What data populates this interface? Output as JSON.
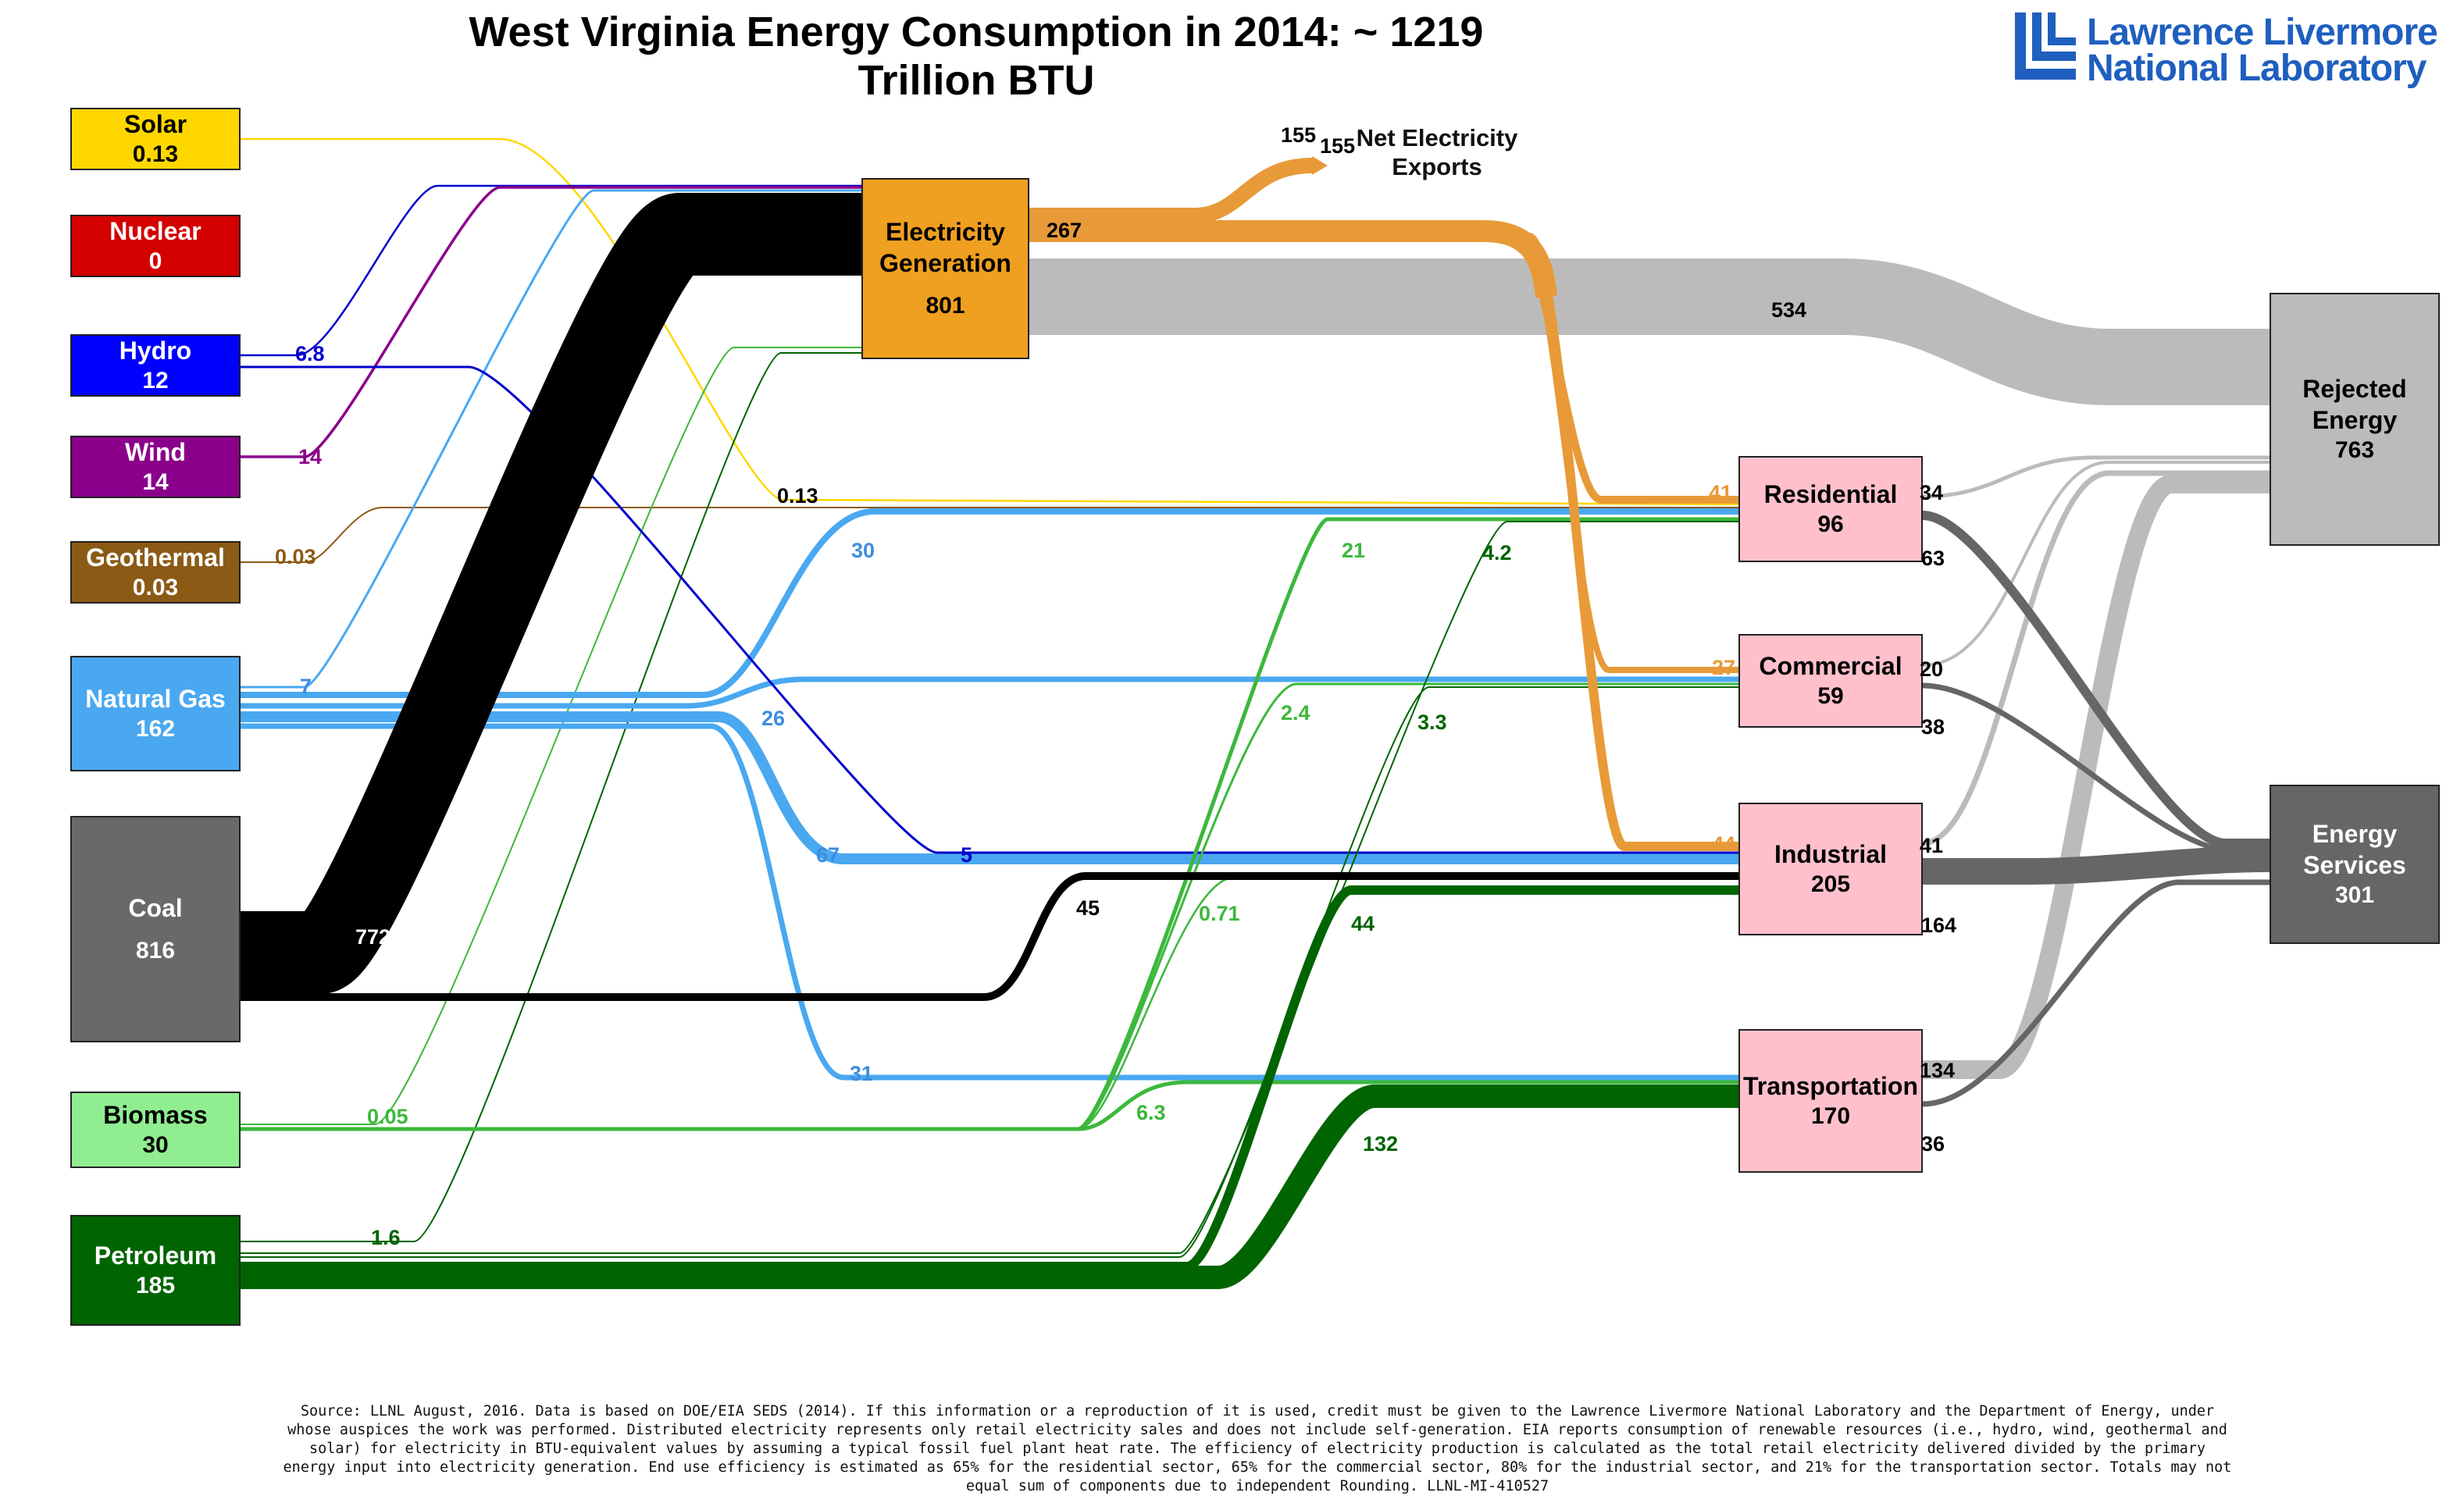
{
  "title": "West Virginia Energy Consumption in 2014: ~ 1219 Trillion BTU",
  "logo": {
    "line1": "Lawrence Livermore",
    "line2": "National Laboratory",
    "color": "#1f5fbf"
  },
  "nodes": {
    "solar": {
      "label": "Solar",
      "value": "0.13",
      "fill": "#ffd700",
      "text": "#000000"
    },
    "nuclear": {
      "label": "Nuclear",
      "value": "0",
      "fill": "#d40000",
      "text": "#ffffff"
    },
    "hydro": {
      "label": "Hydro",
      "value": "12",
      "fill": "#0000ff",
      "text": "#ffffff"
    },
    "wind": {
      "label": "Wind",
      "value": "14",
      "fill": "#8b008b",
      "text": "#ffffff"
    },
    "geothermal": {
      "label": "Geothermal",
      "value": "0.03",
      "fill": "#8b5a14",
      "text": "#ffffff"
    },
    "natural_gas": {
      "label": "Natural Gas",
      "value": "162",
      "fill": "#4aa8f0",
      "text": "#ffffff"
    },
    "coal": {
      "label": "Coal",
      "value": "816",
      "fill": "#696969",
      "text": "#ffffff"
    },
    "biomass": {
      "label": "Biomass",
      "value": "30",
      "fill": "#90ee90",
      "text": "#000000"
    },
    "petroleum": {
      "label": "Petroleum",
      "value": "185",
      "fill": "#006400",
      "text": "#ffffff"
    },
    "electricity": {
      "label": "Electricity Generation",
      "value": "801",
      "fill": "#f0a020",
      "text": "#000000"
    },
    "residential": {
      "label": "Residential",
      "value": "96",
      "fill": "#ffc0cb",
      "text": "#000000"
    },
    "commercial": {
      "label": "Commercial",
      "value": "59",
      "fill": "#ffc0cb",
      "text": "#000000"
    },
    "industrial": {
      "label": "Industrial",
      "value": "205",
      "fill": "#ffc0cb",
      "text": "#000000"
    },
    "transportation": {
      "label": "Transportation",
      "value": "170",
      "fill": "#ffc0cb",
      "text": "#000000"
    },
    "rejected": {
      "label": "Rejected Energy",
      "value": "763",
      "fill": "#bbbbbb",
      "text": "#000000"
    },
    "services": {
      "label": "Energy Services",
      "value": "301",
      "fill": "#666666",
      "text": "#ffffff"
    }
  },
  "net_exports": {
    "label": "Net Electricity Exports",
    "value": "155"
  },
  "flows": [
    {
      "id": "solar-elec",
      "from": "solar",
      "to": "electricity",
      "value": "",
      "color": "#ffd700"
    },
    {
      "id": "hydro-elec",
      "from": "hydro",
      "to": "electricity",
      "value": "6.8",
      "color": "#0000cc"
    },
    {
      "id": "wind-elec",
      "from": "wind",
      "to": "electricity",
      "value": "14",
      "color": "#8b008b"
    },
    {
      "id": "geo-res",
      "from": "geothermal",
      "to": "residential",
      "value": "0.03",
      "color": "#8b5a14"
    },
    {
      "id": "gas-elec",
      "from": "natural_gas",
      "to": "electricity",
      "value": "7",
      "color": "#4aa8f0"
    },
    {
      "id": "coal-elec",
      "from": "coal",
      "to": "electricity",
      "value": "772",
      "color": "#000000"
    },
    {
      "id": "bio-elec",
      "from": "biomass",
      "to": "electricity",
      "value": "0.05",
      "color": "#3cb83c"
    },
    {
      "id": "pet-elec",
      "from": "petroleum",
      "to": "electricity",
      "value": "1.6",
      "color": "#006400"
    },
    {
      "id": "solar-res",
      "from": "solar",
      "to": "residential",
      "value": "0.13",
      "color": "#ffd700"
    },
    {
      "id": "gas-res",
      "from": "natural_gas",
      "to": "residential",
      "value": "30",
      "color": "#4aa8f0"
    },
    {
      "id": "gas-com",
      "from": "natural_gas",
      "to": "commercial",
      "value": "26",
      "color": "#4aa8f0"
    },
    {
      "id": "gas-ind",
      "from": "natural_gas",
      "to": "industrial",
      "value": "67",
      "color": "#4aa8f0"
    },
    {
      "id": "gas-trans",
      "from": "natural_gas",
      "to": "transportation",
      "value": "31",
      "color": "#4aa8f0"
    },
    {
      "id": "hydro-ind",
      "from": "hydro",
      "to": "industrial",
      "value": "5",
      "color": "#0000cc"
    },
    {
      "id": "coal-ind",
      "from": "coal",
      "to": "industrial",
      "value": "45",
      "color": "#000000"
    },
    {
      "id": "bio-res",
      "from": "biomass",
      "to": "residential",
      "value": "21",
      "color": "#3cb83c"
    },
    {
      "id": "bio-com",
      "from": "biomass",
      "to": "commercial",
      "value": "2.4",
      "color": "#3cb83c"
    },
    {
      "id": "bio-ind",
      "from": "biomass",
      "to": "industrial",
      "value": "0.71",
      "color": "#3cb83c"
    },
    {
      "id": "bio-trans",
      "from": "biomass",
      "to": "transportation",
      "value": "6.3",
      "color": "#3cb83c"
    },
    {
      "id": "pet-res",
      "from": "petroleum",
      "to": "residential",
      "value": "4.2",
      "color": "#006400"
    },
    {
      "id": "pet-com",
      "from": "petroleum",
      "to": "commercial",
      "value": "3.3",
      "color": "#006400"
    },
    {
      "id": "pet-ind",
      "from": "petroleum",
      "to": "industrial",
      "value": "44",
      "color": "#006400"
    },
    {
      "id": "pet-trans",
      "from": "petroleum",
      "to": "transportation",
      "value": "132",
      "color": "#006400"
    },
    {
      "id": "elec-exports",
      "from": "electricity",
      "to": "net_exports",
      "value": "155",
      "color": "#e89a38"
    },
    {
      "id": "elec-sectors",
      "from": "electricity",
      "to": "sectors",
      "value": "267",
      "color": "#e89a38"
    },
    {
      "id": "elec-res",
      "from": "electricity",
      "to": "residential",
      "value": "41",
      "color": "#e89a38"
    },
    {
      "id": "elec-com",
      "from": "electricity",
      "to": "commercial",
      "value": "27",
      "color": "#e89a38"
    },
    {
      "id": "elec-ind",
      "from": "electricity",
      "to": "industrial",
      "value": "44",
      "color": "#e89a38"
    },
    {
      "id": "elec-rej",
      "from": "electricity",
      "to": "rejected",
      "value": "534",
      "color": "#bbbbbb"
    },
    {
      "id": "res-rej",
      "from": "residential",
      "to": "rejected",
      "value": "34",
      "color": "#bbbbbb"
    },
    {
      "id": "res-svc",
      "from": "residential",
      "to": "services",
      "value": "63",
      "color": "#666666"
    },
    {
      "id": "com-rej",
      "from": "commercial",
      "to": "rejected",
      "value": "20",
      "color": "#bbbbbb"
    },
    {
      "id": "com-svc",
      "from": "commercial",
      "to": "services",
      "value": "38",
      "color": "#666666"
    },
    {
      "id": "ind-rej",
      "from": "industrial",
      "to": "rejected",
      "value": "41",
      "color": "#bbbbbb"
    },
    {
      "id": "ind-svc",
      "from": "industrial",
      "to": "services",
      "value": "164",
      "color": "#666666"
    },
    {
      "id": "trans-rej",
      "from": "transportation",
      "to": "rejected",
      "value": "134",
      "color": "#bbbbbb"
    },
    {
      "id": "trans-svc",
      "from": "transportation",
      "to": "services",
      "value": "36",
      "color": "#666666"
    }
  ],
  "footer": "Source: LLNL August, 2016. Data is based on DOE/EIA SEDS (2014). If this information or a reproduction of it is used, credit must be given to the Lawrence Livermore National Laboratory and the Department of Energy, under whose auspices the work was performed. Distributed electricity represents only retail electricity sales and does not include self-generation.  EIA reports consumption of renewable resources (i.e., hydro, wind, geothermal and solar) for electricity in BTU-equivalent values by assuming a typical fossil fuel plant heat rate.  The efficiency of electricity production is calculated as the total retail electricity delivered divided by the primary energy input into electricity generation.  End use efficiency is estimated as 65% for the residential sector, 65% for the commercial sector, 80% for the industrial sector, and 21% for the transportation sector.  Totals may not equal sum of components due to independent Rounding. LLNL-MI-410527"
}
